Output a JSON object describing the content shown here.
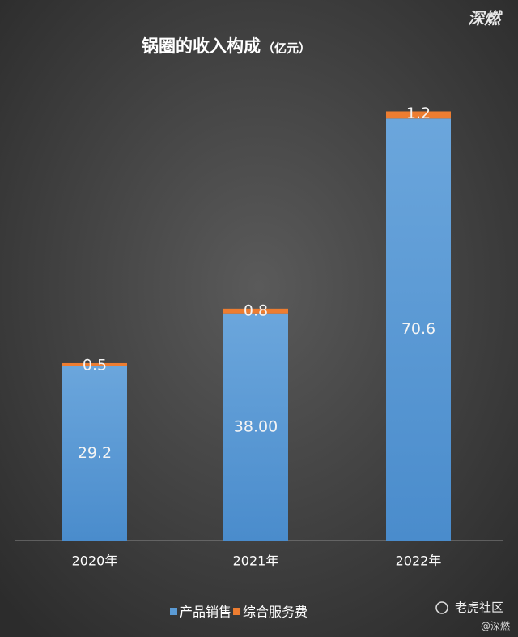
{
  "chart_data": {
    "type": "stacked_bar",
    "title": "锅圈的收入构成",
    "subtitle": "（亿元）",
    "categories": [
      "2020年",
      "2021年",
      "2022年"
    ],
    "series": [
      {
        "name": "产品销售",
        "color": "#5b9bd5",
        "values": [
          29.2,
          38,
          70.6
        ],
        "value_labels": [
          "29.2",
          "38.00",
          "70.6"
        ]
      },
      {
        "name": "综合服务费",
        "color": "#ed7d31",
        "values": [
          0.5,
          0.8,
          1.2
        ]
      }
    ],
    "ylim": [
      0,
      80
    ],
    "legend": "bottom",
    "annotations": [
      "深燃",
      "老虎社区",
      "@深燃"
    ]
  }
}
